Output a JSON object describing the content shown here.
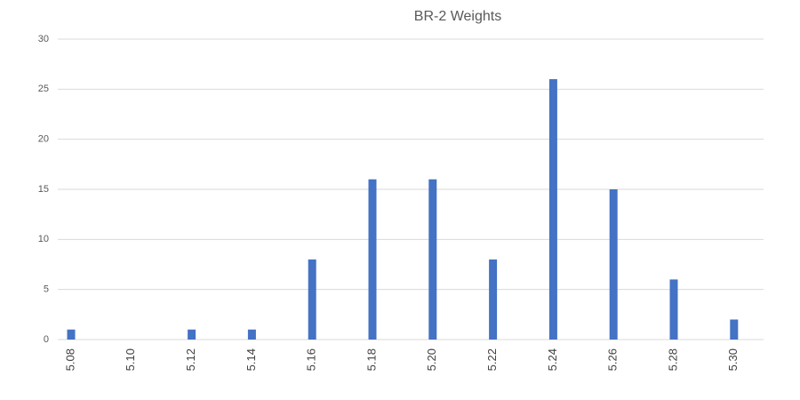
{
  "chart_data": {
    "type": "bar",
    "title": "BR-2 Weights",
    "categories": [
      "5.08",
      "5.10",
      "5.12",
      "5.14",
      "5.16",
      "5.18",
      "5.20",
      "5.22",
      "5.24",
      "5.26",
      "5.28",
      "5.30"
    ],
    "values": [
      1,
      0,
      1,
      1,
      8,
      16,
      16,
      8,
      26,
      15,
      6,
      2
    ],
    "color": "#4472c4",
    "ylim": [
      0,
      30
    ],
    "yticks": [
      0,
      5,
      10,
      15,
      20,
      25,
      30
    ],
    "grid": true
  }
}
